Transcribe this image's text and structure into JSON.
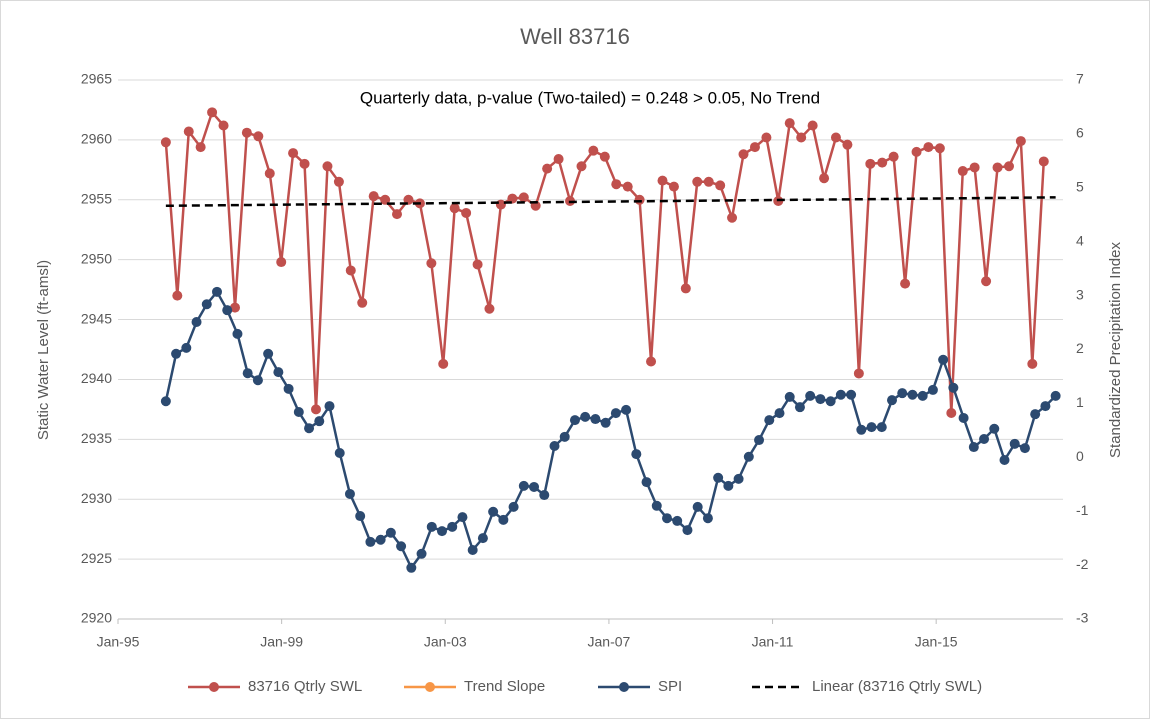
{
  "chart_data": {
    "type": "line",
    "title": "Well 83716",
    "annotation": "Quarterly data,  p-value (Two-tailed) = 0.248 > 0.05, No Trend",
    "ylabel": "Static Water Level (ft-amsl)",
    "y2label": "Standardized Precipitation Index",
    "xlim": [
      1995,
      2018.1
    ],
    "xticks": [
      {
        "value": 1995,
        "label": "Jan-95"
      },
      {
        "value": 1999,
        "label": "Jan-99"
      },
      {
        "value": 2003,
        "label": "Jan-03"
      },
      {
        "value": 2007,
        "label": "Jan-07"
      },
      {
        "value": 2011,
        "label": "Jan-11"
      },
      {
        "value": 2015,
        "label": "Jan-15"
      }
    ],
    "ylim": [
      2920,
      2965
    ],
    "yticks": [
      2920,
      2925,
      2930,
      2935,
      2940,
      2945,
      2950,
      2955,
      2960,
      2965
    ],
    "y2lim": [
      -3,
      7
    ],
    "y2ticks": [
      -3,
      -2,
      -1,
      0,
      1,
      2,
      3,
      4,
      5,
      6,
      7
    ],
    "grid": true,
    "legend": "bottom",
    "series": [
      {
        "name": "83716 Qtrly SWL",
        "color": "#c0504d",
        "marker": true,
        "x": [
          1996.17,
          1996.45,
          1996.73,
          1997.02,
          1997.3,
          1997.58,
          1997.86,
          1998.15,
          1998.43,
          1998.71,
          1998.99,
          1999.28,
          1999.56,
          1999.84,
          2000.12,
          2000.4,
          2000.69,
          2000.97,
          2001.25,
          2001.53,
          2001.82,
          2002.1,
          2002.38,
          2002.66,
          2002.95,
          2003.23,
          2003.51,
          2003.79,
          2004.08,
          2004.36,
          2004.64,
          2004.92,
          2005.21,
          2005.49,
          2005.77,
          2006.05,
          2006.33,
          2006.62,
          2006.9,
          2007.18,
          2007.46,
          2007.75,
          2008.03,
          2008.31,
          2008.59,
          2008.88,
          2009.16,
          2009.44,
          2009.72,
          2010.01,
          2010.29,
          2010.57,
          2010.85,
          2011.14,
          2011.42,
          2011.7,
          2011.98,
          2012.26,
          2012.55,
          2012.83,
          2013.11,
          2013.39,
          2013.68,
          2013.96,
          2014.24,
          2014.52,
          2014.81,
          2015.09,
          2015.37,
          2015.65,
          2015.94,
          2016.22,
          2016.5,
          2016.78,
          2017.07,
          2017.35,
          2017.63
        ],
        "values": [
          2959.8,
          2947.0,
          2960.7,
          2959.4,
          2962.3,
          2961.2,
          2946.0,
          2960.6,
          2960.3,
          2957.2,
          2949.8,
          2958.9,
          2958.0,
          2937.5,
          2957.8,
          2956.5,
          2949.1,
          2946.4,
          2955.3,
          2955.0,
          2953.8,
          2955.0,
          2954.7,
          2949.7,
          2941.3,
          2954.3,
          2953.9,
          2949.6,
          2945.9,
          2954.6,
          2955.1,
          2955.2,
          2954.5,
          2957.6,
          2958.4,
          2954.9,
          2957.8,
          2959.1,
          2958.6,
          2956.3,
          2956.1,
          2955.0,
          2941.5,
          2956.6,
          2956.1,
          2947.6,
          2956.5,
          2956.5,
          2956.2,
          2953.5,
          2958.8,
          2959.4,
          2960.2,
          2954.9,
          2961.4,
          2960.2,
          2961.2,
          2956.8,
          2960.2,
          2959.6,
          2940.5,
          2958.0,
          2958.1,
          2958.6,
          2948.0,
          2959.0,
          2959.4,
          2959.3,
          2937.2,
          2957.4,
          2957.7,
          2948.2,
          2957.7,
          2957.8,
          2959.9,
          2941.3,
          2958.2
        ]
      },
      {
        "name": "Trend Slope",
        "color": "#f79646",
        "marker": true,
        "x": [],
        "values": []
      },
      {
        "name": "SPI",
        "color": "#2c4a70",
        "marker": true,
        "axis": "y2",
        "x": [
          1996.17,
          1996.42,
          1996.67,
          1996.92,
          1997.17,
          1997.42,
          1997.67,
          1997.92,
          1998.17,
          1998.42,
          1998.67,
          1998.92,
          1999.17,
          1999.42,
          1999.67,
          1999.92,
          2000.17,
          2000.42,
          2000.67,
          2000.92,
          2001.17,
          2001.42,
          2001.67,
          2001.92,
          2002.17,
          2002.42,
          2002.67,
          2002.92,
          2003.17,
          2003.42,
          2003.67,
          2003.92,
          2004.17,
          2004.42,
          2004.67,
          2004.92,
          2005.17,
          2005.42,
          2005.67,
          2005.92,
          2006.17,
          2006.42,
          2006.67,
          2006.92,
          2007.17,
          2007.42,
          2007.67,
          2007.92,
          2008.17,
          2008.42,
          2008.67,
          2008.92,
          2009.17,
          2009.42,
          2009.67,
          2009.92,
          2010.17,
          2010.42,
          2010.67,
          2010.92,
          2011.17,
          2011.42,
          2011.67,
          2011.92,
          2012.17,
          2012.42,
          2012.67,
          2012.92,
          2013.17,
          2013.42,
          2013.67,
          2013.92,
          2014.17,
          2014.42,
          2014.67,
          2014.92,
          2015.17,
          2015.42,
          2015.67,
          2015.92,
          2016.17,
          2016.42,
          2016.67,
          2016.92,
          2017.17,
          2017.42,
          2017.67,
          2017.92
        ],
        "values": [
          1.04,
          1.92,
          2.03,
          2.51,
          2.84,
          3.07,
          2.73,
          2.29,
          1.56,
          1.43,
          1.92,
          1.58,
          1.27,
          0.84,
          0.54,
          0.67,
          0.95,
          0.08,
          -0.68,
          -1.09,
          -1.57,
          -1.53,
          -1.4,
          -1.65,
          -2.05,
          -1.79,
          -1.29,
          -1.37,
          -1.29,
          -1.11,
          -1.72,
          -1.5,
          -1.01,
          -1.16,
          -0.92,
          -0.53,
          -0.55,
          -0.7,
          0.21,
          0.38,
          0.69,
          0.75,
          0.71,
          0.64,
          0.82,
          0.88,
          0.06,
          -0.46,
          -0.9,
          -1.13,
          -1.18,
          -1.35,
          -0.92,
          -1.13,
          -0.38,
          -0.53,
          -0.4,
          0.01,
          0.32,
          0.69,
          0.82,
          1.12,
          0.93,
          1.14,
          1.08,
          1.04,
          1.16,
          1.16,
          0.51,
          0.56,
          0.56,
          1.06,
          1.19,
          1.16,
          1.14,
          1.25,
          1.81,
          1.29,
          0.73,
          0.19,
          0.34,
          0.53,
          -0.05,
          0.25,
          0.17,
          0.8,
          0.95,
          1.14
        ]
      },
      {
        "name": "Linear (83716 Qtrly SWL)",
        "color": "#000000",
        "dash": true,
        "marker": false,
        "x": [
          1996.17,
          2017.92
        ],
        "values": [
          2954.5,
          2955.2
        ]
      }
    ]
  }
}
